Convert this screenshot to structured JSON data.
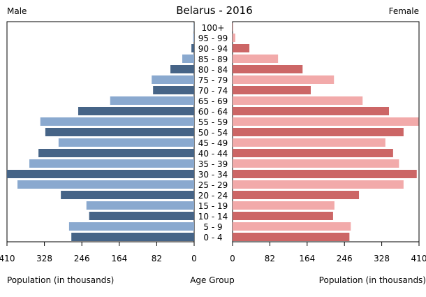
{
  "chart_data": {
    "type": "bar",
    "title": "Belarus - 2016",
    "left_label": "Male",
    "right_label": "Female",
    "xlabel_left": "Population (in thousands)",
    "xlabel_center": "Age Group",
    "xlabel_right": "Population (in thousands)",
    "xlim": [
      0,
      410
    ],
    "ticks": [
      0,
      82,
      164,
      246,
      328,
      410
    ],
    "categories": [
      "100+",
      "95 - 99",
      "90 - 94",
      "85 - 89",
      "80 - 84",
      "75 - 79",
      "70 - 74",
      "65 - 69",
      "60 - 64",
      "55 - 59",
      "50 - 54",
      "45 - 49",
      "40 - 44",
      "35 - 39",
      "30 - 34",
      "25 - 29",
      "20 - 24",
      "15 - 19",
      "10 - 14",
      "5 - 9",
      "0 - 4"
    ],
    "series": [
      {
        "name": "Male",
        "values": [
          1,
          2,
          6,
          26,
          52,
          93,
          90,
          184,
          254,
          337,
          326,
          297,
          341,
          361,
          410,
          387,
          292,
          236,
          230,
          274,
          269
        ],
        "colors": [
          "#466487",
          "#8aa9cf"
        ]
      },
      {
        "name": "Female",
        "values": [
          1,
          6,
          37,
          100,
          154,
          223,
          172,
          286,
          344,
          409,
          376,
          336,
          353,
          366,
          405,
          376,
          278,
          224,
          221,
          260,
          257
        ],
        "colors": [
          "#cc6666",
          "#f2aaaa"
        ]
      }
    ],
    "grid": false
  }
}
